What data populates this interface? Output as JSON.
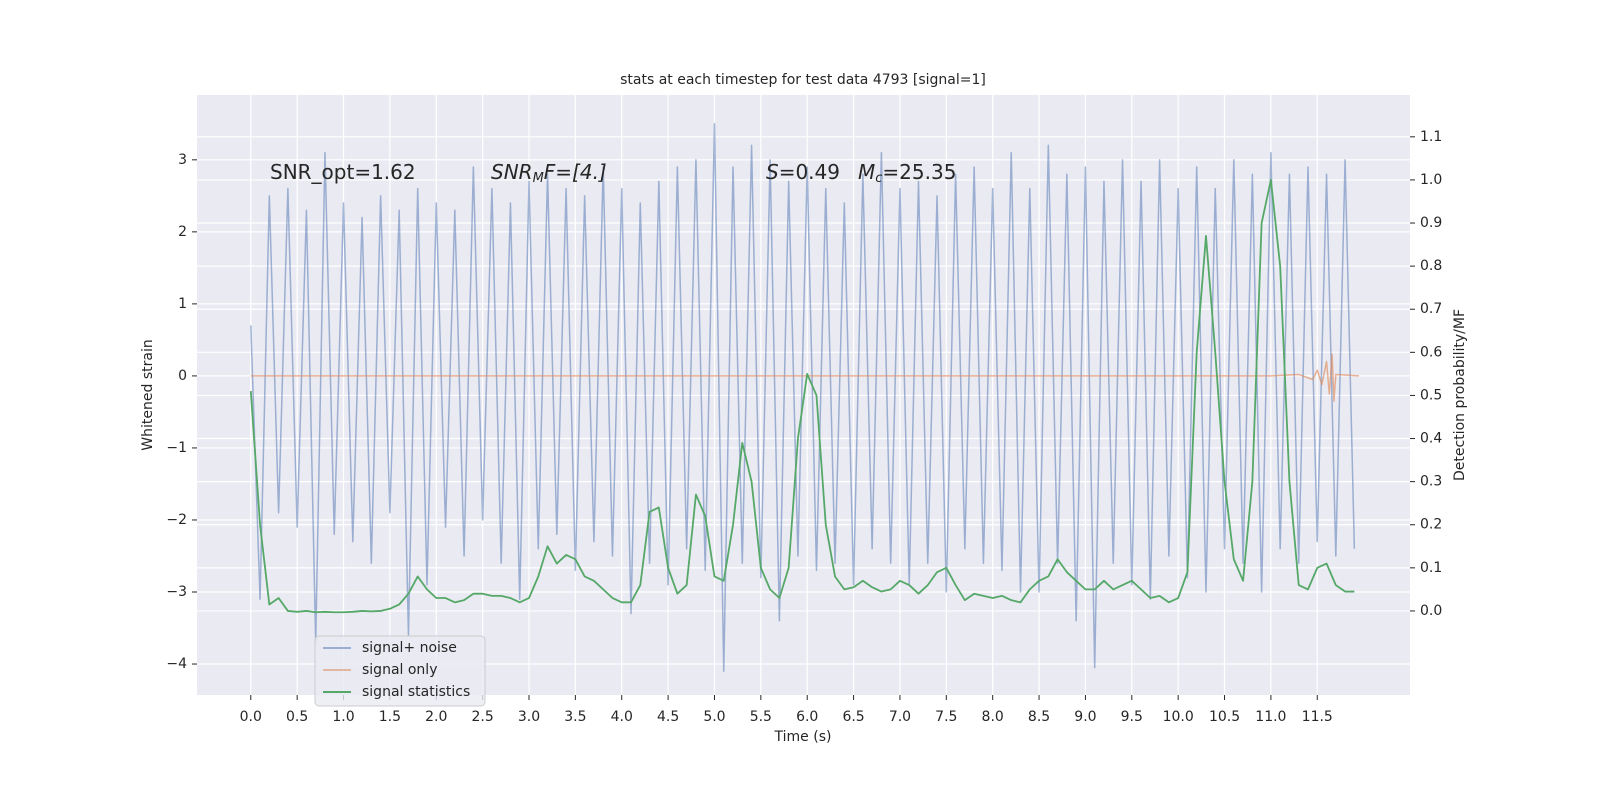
{
  "chart_data": {
    "type": "line",
    "title": "stats at each timestep for test data 4793 [signal=1]",
    "xlabel": "Time (s)",
    "ylabel": "Whitened strain",
    "y2label": "Detection probability/MF",
    "annotations": [
      {
        "text": "SNR_opt=1.62"
      },
      {
        "base": "SNR",
        "sub": "M",
        "rest": "F=[4.]"
      },
      {
        "base": "S",
        "rest": "=0.49"
      },
      {
        "base": "M",
        "sub": "c",
        "rest": "=25.35"
      }
    ],
    "x": [
      0.0,
      0.1,
      0.2,
      0.3,
      0.4,
      0.5,
      0.6,
      0.7,
      0.8,
      0.9,
      1.0,
      1.1,
      1.2,
      1.3,
      1.4,
      1.5,
      1.6,
      1.7,
      1.8,
      1.9,
      2.0,
      2.1,
      2.2,
      2.3,
      2.4,
      2.5,
      2.6,
      2.7,
      2.8,
      2.9,
      3.0,
      3.1,
      3.2,
      3.3,
      3.4,
      3.5,
      3.6,
      3.7,
      3.8,
      3.9,
      4.0,
      4.1,
      4.2,
      4.3,
      4.4,
      4.5,
      4.6,
      4.7,
      4.8,
      4.9,
      5.0,
      5.1,
      5.2,
      5.3,
      5.4,
      5.5,
      5.6,
      5.7,
      5.8,
      5.9,
      6.0,
      6.1,
      6.2,
      6.3,
      6.4,
      6.5,
      6.6,
      6.7,
      6.8,
      6.9,
      7.0,
      7.1,
      7.2,
      7.3,
      7.4,
      7.5,
      7.6,
      7.7,
      7.8,
      7.9,
      8.0,
      8.1,
      8.2,
      8.3,
      8.4,
      8.5,
      8.6,
      8.7,
      8.8,
      8.9,
      9.0,
      9.1,
      9.2,
      9.3,
      9.4,
      9.5,
      9.6,
      9.7,
      9.8,
      9.9,
      10.0,
      10.1,
      10.2,
      10.3,
      10.4,
      10.5,
      10.6,
      10.7,
      10.8,
      10.9,
      11.0,
      11.1,
      11.2,
      11.3,
      11.4,
      11.5,
      11.6,
      11.7,
      11.8,
      11.9
    ],
    "series": [
      {
        "name": "signal+ noise",
        "color": "#4c72b0",
        "values": [
          0.7,
          -3.1,
          2.5,
          -1.9,
          2.6,
          -2.1,
          2.3,
          -3.7,
          3.1,
          -2.2,
          2.4,
          -2.3,
          2.2,
          -2.6,
          2.5,
          -1.9,
          2.3,
          -3.6,
          2.6,
          -2.9,
          2.4,
          -2.1,
          2.3,
          -2.5,
          2.9,
          -2.0,
          2.6,
          -2.6,
          2.4,
          -3.1,
          2.7,
          -2.4,
          2.8,
          -2.2,
          2.6,
          -2.7,
          2.5,
          -2.3,
          2.9,
          -2.5,
          2.6,
          -3.3,
          2.4,
          -2.6,
          2.7,
          -2.9,
          2.9,
          -2.4,
          3.0,
          -2.7,
          3.5,
          -4.1,
          2.9,
          -2.6,
          3.2,
          -2.8,
          3.0,
          -3.4,
          2.7,
          -2.5,
          2.9,
          -2.7,
          2.6,
          -2.6,
          2.4,
          -2.9,
          2.8,
          -2.4,
          3.1,
          -2.6,
          2.6,
          -2.9,
          2.7,
          -2.6,
          2.5,
          -3.0,
          2.8,
          -2.4,
          2.9,
          -2.6,
          2.6,
          -2.7,
          3.1,
          -3.0,
          2.6,
          -3.0,
          3.2,
          -2.6,
          2.8,
          -3.4,
          2.9,
          -4.05,
          2.7,
          -2.6,
          3.0,
          -2.9,
          2.7,
          -3.1,
          3.0,
          -2.5,
          2.6,
          -2.8,
          2.9,
          -3.0,
          2.6,
          -2.4,
          3.0,
          -2.6,
          2.8,
          -3.0,
          3.1,
          -2.4,
          2.8,
          -2.6,
          2.9,
          -2.3,
          2.8,
          -2.5,
          3.0,
          -2.4
        ]
      },
      {
        "name": "signal only",
        "color": "#dd8452",
        "x": [
          0,
          11.0,
          11.3,
          11.45,
          11.5,
          11.55,
          11.6,
          11.63,
          11.66,
          11.68,
          11.7,
          11.95
        ],
        "values": [
          0,
          0,
          0.02,
          -0.05,
          0.08,
          -0.12,
          0.2,
          -0.25,
          0.3,
          -0.35,
          0.02,
          0
        ]
      },
      {
        "name": "signal statistics",
        "color": "#55a868",
        "axis": "y2",
        "values": [
          0.51,
          0.2,
          0.015,
          0.03,
          0.0,
          -0.002,
          0.0,
          -0.003,
          -0.002,
          -0.003,
          -0.003,
          -0.002,
          0.0,
          -0.001,
          0.0,
          0.005,
          0.015,
          0.04,
          0.08,
          0.05,
          0.03,
          0.03,
          0.02,
          0.025,
          0.04,
          0.04,
          0.035,
          0.035,
          0.03,
          0.02,
          0.03,
          0.08,
          0.15,
          0.11,
          0.13,
          0.12,
          0.08,
          0.07,
          0.05,
          0.03,
          0.02,
          0.02,
          0.06,
          0.23,
          0.24,
          0.1,
          0.04,
          0.06,
          0.27,
          0.22,
          0.08,
          0.07,
          0.2,
          0.39,
          0.3,
          0.1,
          0.05,
          0.03,
          0.1,
          0.4,
          0.55,
          0.5,
          0.2,
          0.08,
          0.05,
          0.055,
          0.07,
          0.055,
          0.045,
          0.05,
          0.07,
          0.06,
          0.04,
          0.06,
          0.09,
          0.1,
          0.06,
          0.025,
          0.04,
          0.035,
          0.03,
          0.035,
          0.025,
          0.02,
          0.05,
          0.07,
          0.08,
          0.12,
          0.09,
          0.07,
          0.05,
          0.05,
          0.07,
          0.05,
          0.06,
          0.07,
          0.05,
          0.03,
          0.035,
          0.02,
          0.03,
          0.09,
          0.6,
          0.87,
          0.6,
          0.3,
          0.12,
          0.07,
          0.3,
          0.9,
          1.0,
          0.8,
          0.3,
          0.06,
          0.05,
          0.1,
          0.11,
          0.06,
          0.045,
          0.045
        ]
      }
    ],
    "xlim": [
      -0.58,
      12.5
    ],
    "xticks": [
      {
        "value": 0,
        "label": "0.0"
      },
      0.5,
      {
        "value": 1,
        "label": "1.0"
      },
      1.5,
      {
        "value": 2,
        "label": "2.0"
      },
      2.5,
      {
        "value": 3,
        "label": "3.0"
      },
      3.5,
      {
        "value": 4,
        "label": "4.0"
      },
      4.5,
      {
        "value": 5,
        "label": "5.0"
      },
      5.5,
      {
        "value": 6,
        "label": "6.0"
      },
      6.5,
      {
        "value": 7,
        "label": "7.0"
      },
      7.5,
      {
        "value": 8,
        "label": "8.0"
      },
      8.5,
      {
        "value": 9,
        "label": "9.0"
      },
      9.5,
      {
        "value": 10,
        "label": "10.0"
      },
      10.5,
      {
        "value": 11,
        "label": "11.0"
      },
      11.5
    ],
    "ylim": [
      -4.43,
      3.9
    ],
    "yticks": [
      {
        "value": -4,
        "label": "−4"
      },
      {
        "value": -3,
        "label": "−3"
      },
      {
        "value": -2,
        "label": "−2"
      },
      {
        "value": -1,
        "label": "−1"
      },
      0,
      1,
      2,
      3
    ],
    "y2lim": [
      -0.195,
      1.197
    ],
    "y2ticks": [
      {
        "value": 0,
        "label": "0.0"
      },
      0.1,
      0.2,
      0.3,
      0.4,
      0.5,
      0.6,
      0.7,
      0.8,
      0.9,
      {
        "value": 1,
        "label": "1.0"
      },
      1.1
    ],
    "grid": true,
    "legend": "lower left"
  }
}
